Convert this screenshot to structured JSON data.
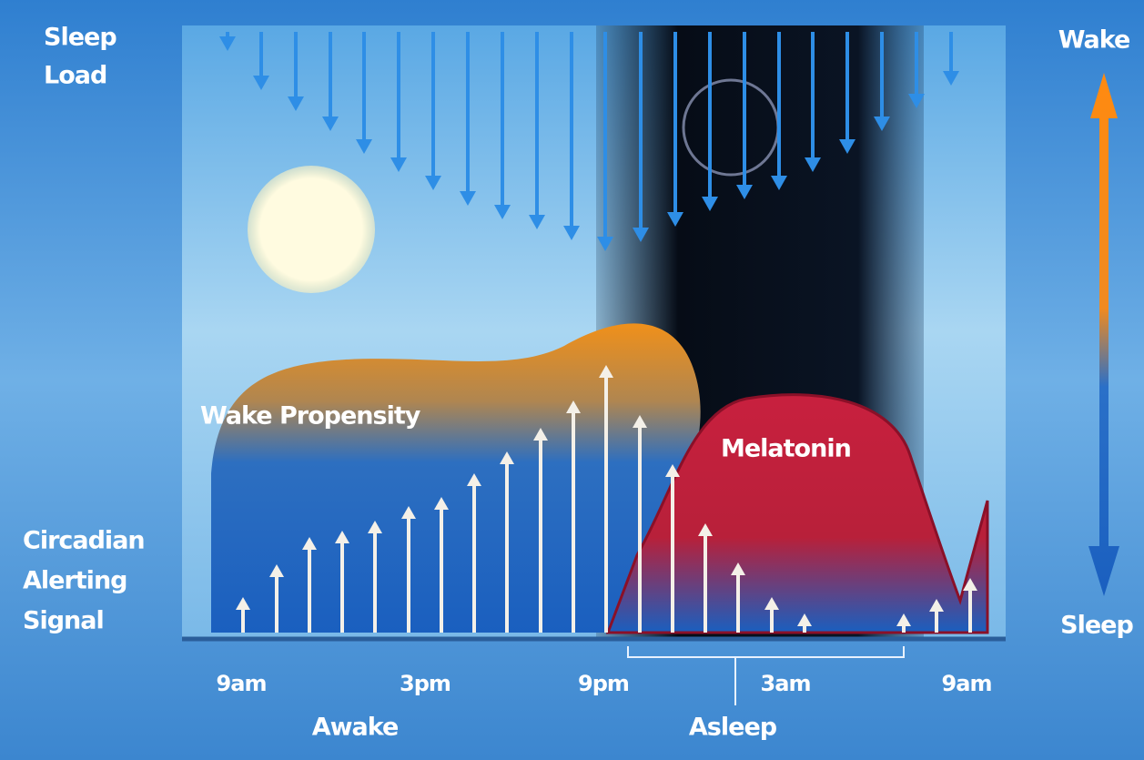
{
  "left_labels": {
    "sleep_load": [
      "Sleep",
      "Load"
    ],
    "circadian": [
      "Circadian",
      "Alerting",
      "Signal"
    ]
  },
  "right_scale": {
    "top": "Wake",
    "bottom": "Sleep"
  },
  "curves": {
    "wake_propensity": "Wake Propensity",
    "melatonin": "Melatonin"
  },
  "time_axis": [
    "9am",
    "3pm",
    "9pm",
    "3am",
    "9am"
  ],
  "periods": {
    "awake": "Awake",
    "asleep": "Asleep"
  }
}
